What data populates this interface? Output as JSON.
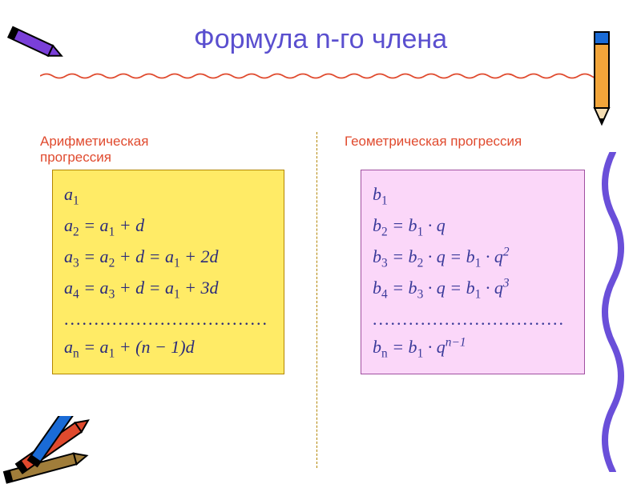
{
  "title": {
    "text": "Формула n-го члена",
    "color": "#5a4fcf",
    "fontsize": 34
  },
  "wave_color": "#e04a2e",
  "divider_color": "#b38600",
  "left": {
    "heading": "Арифметическая прогрессия",
    "heading_color": "#e04a2e",
    "box_bg": "#ffeb66",
    "box_border": "#b38600",
    "text_color": "#2a2a7a",
    "rows": [
      "a<sub>1</sub>",
      "a<sub>2</sub> = a<sub>1</sub> + d",
      "a<sub>3</sub> = a<sub>2</sub> + d = a<sub>1</sub> + 2d",
      "a<sub>4</sub> = a<sub>3</sub> + d = a<sub>1</sub> + 3d",
      "<span class=\"dots\">..................................</span>",
      "a<sub>n</sub> = a<sub>1</sub> + (n − 1)d"
    ]
  },
  "right": {
    "heading": "Геометрическая прогрессия",
    "heading_color": "#e04a2e",
    "box_bg": "#fbd7f9",
    "box_border": "#a050a0",
    "text_color": "#3a3a9a",
    "rows": [
      "b<sub>1</sub>",
      "b<sub>2</sub> = b<sub>1</sub> · q",
      "b<sub>3</sub> = b<sub>2</sub> · q = b<sub>1</sub> · q<sup>2</sup>",
      "b<sub>4</sub> = b<sub>3</sub> · q = b<sub>1</sub> · q<sup>3</sup>",
      "<span class=\"dots\">................................</span>",
      "b<sub>n</sub> = b<sub>1</sub> · q<sup>n−1</sup>"
    ]
  },
  "decor": {
    "crayon_tl_color": "#7a3fd9",
    "pencil_tr_body": "#f2a53a",
    "pencil_tr_accent": "#1a6bd6",
    "crayons_bl": [
      "#a07d3a",
      "#e04a2e",
      "#1a6bd6"
    ],
    "squiggle_color": "#6a4fd9"
  }
}
